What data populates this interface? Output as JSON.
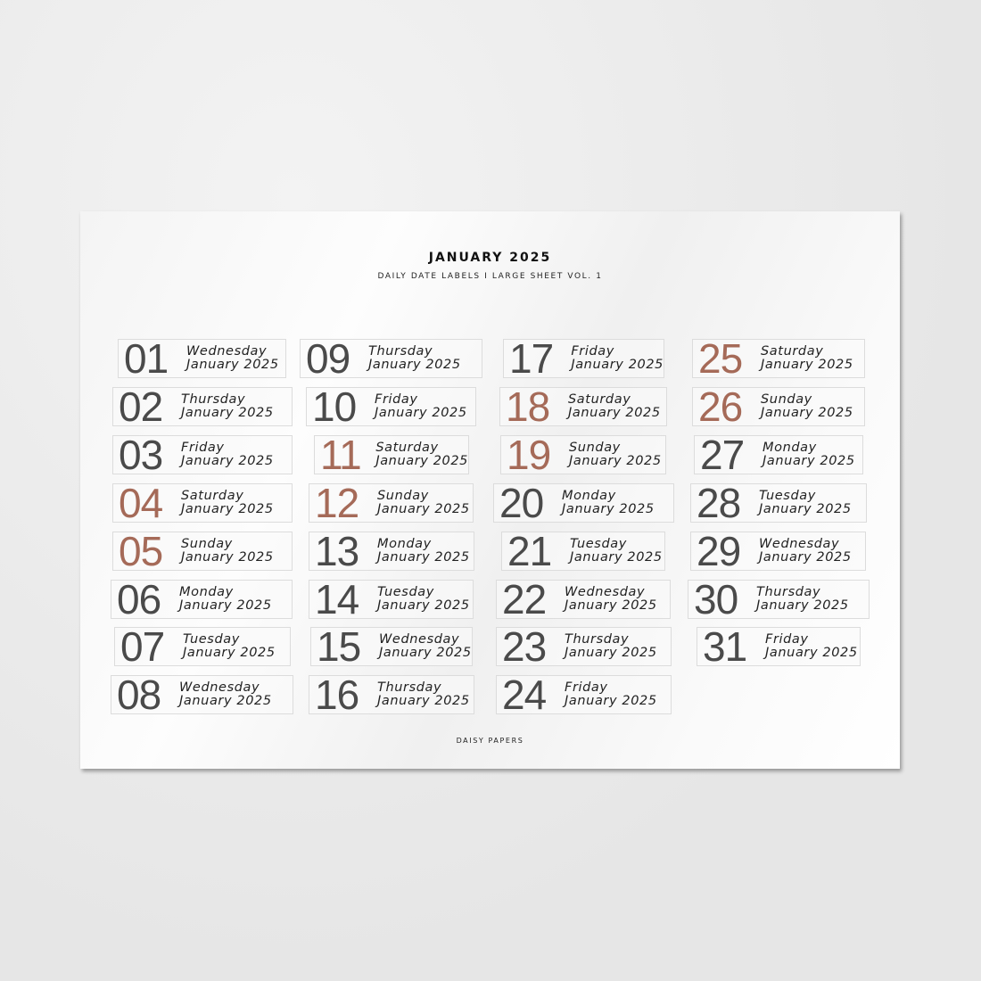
{
  "sheet": {
    "title": "JANUARY 2025",
    "subtitle": "DAILY DATE LABELS I LARGE SHEET VOL. 1",
    "footer": "DAISY PAPERS"
  },
  "colors": {
    "weekday_number": "#4a4a4a",
    "weekend_number": "#a56a58"
  },
  "labels": [
    {
      "num": "01",
      "day": "Wednesday",
      "month": "January 2025",
      "weekend": false
    },
    {
      "num": "02",
      "day": "Thursday",
      "month": "January 2025",
      "weekend": false
    },
    {
      "num": "03",
      "day": "Friday",
      "month": "January 2025",
      "weekend": false
    },
    {
      "num": "04",
      "day": "Saturday",
      "month": "January 2025",
      "weekend": true
    },
    {
      "num": "05",
      "day": "Sunday",
      "month": "January 2025",
      "weekend": true
    },
    {
      "num": "06",
      "day": "Monday",
      "month": "January 2025",
      "weekend": false
    },
    {
      "num": "07",
      "day": "Tuesday",
      "month": "January 2025",
      "weekend": false
    },
    {
      "num": "08",
      "day": "Wednesday",
      "month": "January 2025",
      "weekend": false
    },
    {
      "num": "09",
      "day": "Thursday",
      "month": "January 2025",
      "weekend": false
    },
    {
      "num": "10",
      "day": "Friday",
      "month": "January 2025",
      "weekend": false
    },
    {
      "num": "11",
      "day": "Saturday",
      "month": "January 2025",
      "weekend": true
    },
    {
      "num": "12",
      "day": "Sunday",
      "month": "January 2025",
      "weekend": true
    },
    {
      "num": "13",
      "day": "Monday",
      "month": "January 2025",
      "weekend": false
    },
    {
      "num": "14",
      "day": "Tuesday",
      "month": "January 2025",
      "weekend": false
    },
    {
      "num": "15",
      "day": "Wednesday",
      "month": "January 2025",
      "weekend": false
    },
    {
      "num": "16",
      "day": "Thursday",
      "month": "January 2025",
      "weekend": false
    },
    {
      "num": "17",
      "day": "Friday",
      "month": "January 2025",
      "weekend": false
    },
    {
      "num": "18",
      "day": "Saturday",
      "month": "January 2025",
      "weekend": true
    },
    {
      "num": "19",
      "day": "Sunday",
      "month": "January 2025",
      "weekend": true
    },
    {
      "num": "20",
      "day": "Monday",
      "month": "January 2025",
      "weekend": false
    },
    {
      "num": "21",
      "day": "Tuesday",
      "month": "January 2025",
      "weekend": false
    },
    {
      "num": "22",
      "day": "Wednesday",
      "month": "January 2025",
      "weekend": false
    },
    {
      "num": "23",
      "day": "Thursday",
      "month": "January 2025",
      "weekend": false
    },
    {
      "num": "24",
      "day": "Friday",
      "month": "January 2025",
      "weekend": false
    },
    {
      "num": "25",
      "day": "Saturday",
      "month": "January 2025",
      "weekend": true
    },
    {
      "num": "26",
      "day": "Sunday",
      "month": "January 2025",
      "weekend": true
    },
    {
      "num": "27",
      "day": "Monday",
      "month": "January 2025",
      "weekend": false
    },
    {
      "num": "28",
      "day": "Tuesday",
      "month": "January 2025",
      "weekend": false
    },
    {
      "num": "29",
      "day": "Wednesday",
      "month": "January 2025",
      "weekend": false
    },
    {
      "num": "30",
      "day": "Thursday",
      "month": "January 2025",
      "weekend": false
    },
    {
      "num": "31",
      "day": "Friday",
      "month": "January 2025",
      "weekend": false
    }
  ]
}
